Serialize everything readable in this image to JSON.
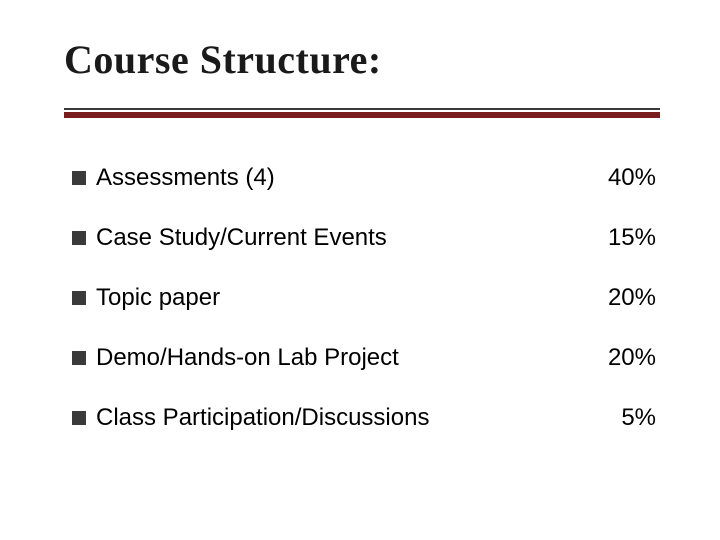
{
  "slide": {
    "title": "Course Structure:",
    "title_fontsize": 40,
    "title_font": "Times New Roman",
    "title_color": "#1a1a1a",
    "underline": {
      "thin_color": "#3a3a3a",
      "thick_color": "#7a1d1d",
      "thin_height": 2,
      "thick_height": 6,
      "gap": 2
    },
    "bullet_color": "#3a3a3a",
    "body_fontsize": 24,
    "body_color": "#000000",
    "background_color": "#ffffff",
    "items": [
      {
        "label": "Assessments (4)",
        "pct": "40%"
      },
      {
        "label": "Case Study/Current Events",
        "pct": "15%"
      },
      {
        "label": "Topic paper",
        "pct": "20%"
      },
      {
        "label": "Demo/Hands-on Lab Project",
        "pct": "20%"
      },
      {
        "label": "Class Participation/Discussions",
        "pct": "5%"
      }
    ]
  }
}
